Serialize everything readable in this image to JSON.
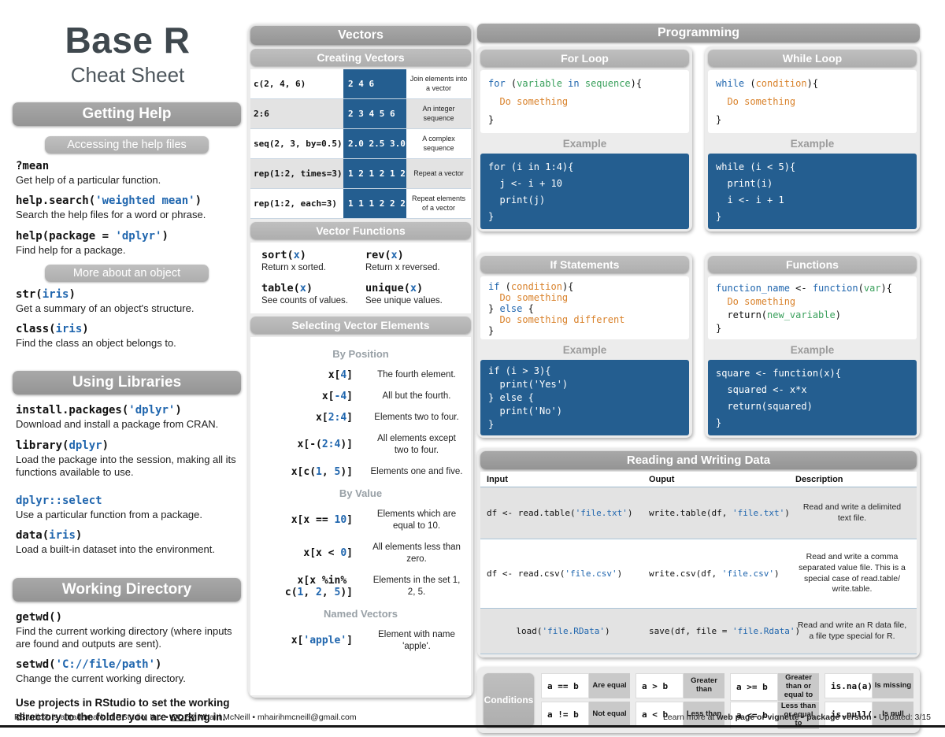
{
  "colors": {
    "header_bar": "#9c9c9c",
    "subheader_bar": "#b5b5b5",
    "panel_bg": "#ececec",
    "code_blue": "#2066ae",
    "code_orange": "#d9822b",
    "code_green": "#3aa05c",
    "example_box_blue": "#245e90"
  },
  "header": {
    "title": "Base R",
    "subtitle": "Cheat Sheet"
  },
  "left": {
    "getting_help": {
      "title": "Getting Help",
      "sub_access": "Accessing the help files",
      "sub_more": "More about an object",
      "access_items": [
        {
          "code": [
            [
              [
                "b",
                "?mean"
              ]
            ]
          ],
          "desc": "Get help of a particular function."
        },
        {
          "code": [
            [
              [
                "b",
                "help.search("
              ],
              [
                "s",
                "'weighted mean'"
              ],
              [
                "b",
                ")"
              ]
            ]
          ],
          "desc": "Search the help files for a word or phrase."
        },
        {
          "code": [
            [
              [
                "b",
                "help(package = "
              ],
              [
                "s",
                "'dplyr'"
              ],
              [
                "b",
                ")"
              ]
            ]
          ],
          "desc": "Find help for a package."
        }
      ],
      "more_items": [
        {
          "code": [
            [
              [
                "b",
                "str("
              ],
              [
                "s",
                "iris"
              ],
              [
                "b",
                ")"
              ]
            ]
          ],
          "desc": "Get a summary of an object's structure."
        },
        {
          "code": [
            [
              [
                "b",
                "class("
              ],
              [
                "s",
                "iris"
              ],
              [
                "b",
                ")"
              ]
            ]
          ],
          "desc": "Find the class an object belongs to."
        }
      ]
    },
    "using_libraries": {
      "title": "Using Libraries",
      "items": [
        {
          "code": [
            [
              [
                "b",
                "install.packages("
              ],
              [
                "s",
                "'dplyr'"
              ],
              [
                "b",
                ")"
              ]
            ]
          ],
          "desc": "Download and install a package from CRAN."
        },
        {
          "code": [
            [
              [
                "b",
                "library("
              ],
              [
                "s",
                "dplyr"
              ],
              [
                "b",
                ")"
              ]
            ]
          ],
          "desc": "Load the package into the session, making all its functions available to use."
        },
        {
          "code": [
            [
              [
                "s",
                "dplyr::select"
              ]
            ]
          ],
          "desc": "Use a particular function from a package."
        },
        {
          "code": [
            [
              [
                "b",
                "data("
              ],
              [
                "s",
                "iris"
              ],
              [
                "b",
                ")"
              ]
            ]
          ],
          "desc": "Load a built-in dataset into the environment."
        }
      ]
    },
    "working_directory": {
      "title": "Working Directory",
      "items": [
        {
          "code": [
            [
              [
                "b",
                "getwd()"
              ]
            ]
          ],
          "desc": "Find the current working directory (where inputs are found and outputs are sent)."
        },
        {
          "code": [
            [
              [
                "b",
                "setwd("
              ],
              [
                "s",
                "'C://file/path'"
              ],
              [
                "b",
                ")"
              ]
            ]
          ],
          "desc": "Change the current working directory."
        }
      ],
      "note": "Use projects in RStudio to set the working directory to the folder you are working in."
    }
  },
  "vectors": {
    "title": "Vectors",
    "creating": {
      "title": "Creating Vectors",
      "rows": [
        {
          "code": [
            [
              [
                "b",
                "c(2, 4, 6)"
              ]
            ]
          ],
          "output": "2 4 6",
          "desc": "Join elements into a vector"
        },
        {
          "code": [
            [
              [
                "b",
                "2:6"
              ]
            ]
          ],
          "output": "2 3 4 5 6",
          "desc": "An integer sequence"
        },
        {
          "code": [
            [
              [
                "b",
                "seq(2, 3, by=0.5)"
              ]
            ]
          ],
          "output": "2.0 2.5 3.0",
          "desc": "A complex sequence"
        },
        {
          "code": [
            [
              [
                "b",
                "rep(1:2, times=3)"
              ]
            ]
          ],
          "output": "1 2 1 2 1 2",
          "desc": "Repeat a vector"
        },
        {
          "code": [
            [
              [
                "b",
                "rep(1:2, each=3)"
              ]
            ]
          ],
          "output": "1 1 1 2 2 2",
          "desc": "Repeat elements of a vector"
        }
      ]
    },
    "functions": {
      "title": "Vector Functions",
      "items": [
        {
          "code": [
            [
              [
                "b",
                "sort("
              ],
              [
                "s",
                "x"
              ],
              [
                "b",
                ")"
              ]
            ]
          ],
          "desc": "Return x sorted."
        },
        {
          "code": [
            [
              [
                "b",
                "rev("
              ],
              [
                "s",
                "x"
              ],
              [
                "b",
                ")"
              ]
            ]
          ],
          "desc": "Return x reversed."
        },
        {
          "code": [
            [
              [
                "b",
                "table("
              ],
              [
                "s",
                "x"
              ],
              [
                "b",
                ")"
              ]
            ]
          ],
          "desc": "See counts of values."
        },
        {
          "code": [
            [
              [
                "b",
                "unique("
              ],
              [
                "s",
                "x"
              ],
              [
                "b",
                ")"
              ]
            ]
          ],
          "desc": "See unique values."
        }
      ]
    },
    "selecting": {
      "title": "Selecting Vector Elements",
      "by_position_label": "By Position",
      "by_value_label": "By Value",
      "named_label": "Named Vectors",
      "position": [
        {
          "code": [
            [
              [
                "b",
                "x["
              ],
              [
                "s",
                "4"
              ],
              [
                "b",
                "]"
              ]
            ]
          ],
          "desc": "The fourth element."
        },
        {
          "code": [
            [
              [
                "b",
                "x["
              ],
              [
                "s",
                "-4"
              ],
              [
                "b",
                "]"
              ]
            ]
          ],
          "desc": "All but the fourth."
        },
        {
          "code": [
            [
              [
                "b",
                "x["
              ],
              [
                "s",
                "2:4"
              ],
              [
                "b",
                "]"
              ]
            ]
          ],
          "desc": "Elements two to four."
        },
        {
          "code": [
            [
              [
                "b",
                "x[-("
              ],
              [
                "s",
                "2:4"
              ],
              [
                "b",
                ")]"
              ]
            ]
          ],
          "desc": "All elements except two to four."
        },
        {
          "code": [
            [
              [
                "b",
                "x[c("
              ],
              [
                "s",
                "1"
              ],
              [
                "b",
                ", "
              ],
              [
                "s",
                "5"
              ],
              [
                "b",
                ")]"
              ]
            ]
          ],
          "desc": "Elements one and five."
        }
      ],
      "value": [
        {
          "code": [
            [
              [
                "b",
                "x[x == "
              ],
              [
                "s",
                "10"
              ],
              [
                "b",
                "]"
              ]
            ]
          ],
          "desc": "Elements which are equal to 10."
        },
        {
          "code": [
            [
              [
                "b",
                "x[x < "
              ],
              [
                "s",
                "0"
              ],
              [
                "b",
                "]"
              ]
            ]
          ],
          "desc": "All elements less than zero."
        },
        {
          "code": [
            [
              [
                "b",
                "x[x %in% "
              ]
            ],
            [
              [
                "b",
                "c("
              ],
              [
                "s",
                "1"
              ],
              [
                "b",
                ", "
              ],
              [
                "s",
                "2"
              ],
              [
                "b",
                ", "
              ],
              [
                "s",
                "5"
              ],
              [
                "b",
                ")]"
              ]
            ]
          ],
          "desc": "Elements in the set 1, 2, 5."
        }
      ],
      "named": [
        {
          "code": [
            [
              [
                "b",
                "x["
              ],
              [
                "s",
                "'apple'"
              ],
              [
                "b",
                "]"
              ]
            ]
          ],
          "desc": "Element with name 'apple'."
        }
      ]
    }
  },
  "programming": {
    "title": "Programming",
    "example_label": "Example",
    "for_loop": {
      "title": "For Loop",
      "code": [
        [
          [
            "k",
            "for"
          ],
          [
            "b",
            " ("
          ],
          [
            "g",
            "variable"
          ],
          [
            "b",
            " "
          ],
          [
            "k",
            "in"
          ],
          [
            "b",
            " "
          ],
          [
            "g",
            "sequence"
          ],
          [
            "b",
            "){"
          ]
        ],
        [
          [
            "b",
            "  "
          ],
          [
            "o",
            "Do something"
          ]
        ],
        [
          [
            "b",
            "}"
          ]
        ]
      ],
      "example": [
        [
          [
            "b",
            "for (i in 1:4){"
          ]
        ],
        [
          [
            "b",
            "  j <- i + 10"
          ]
        ],
        [
          [
            "b",
            "  print(j)"
          ]
        ],
        [
          [
            "b",
            "}"
          ]
        ]
      ]
    },
    "while_loop": {
      "title": "While Loop",
      "code": [
        [
          [
            "k",
            "while"
          ],
          [
            "b",
            " ("
          ],
          [
            "o",
            "condition"
          ],
          [
            "b",
            "){"
          ]
        ],
        [
          [
            "b",
            "  "
          ],
          [
            "o",
            "Do something"
          ]
        ],
        [
          [
            "b",
            "}"
          ]
        ]
      ],
      "example": [
        [
          [
            "b",
            "while (i < 5){"
          ]
        ],
        [
          [
            "b",
            "  print(i)"
          ]
        ],
        [
          [
            "b",
            "  i <- i + 1"
          ]
        ],
        [
          [
            "b",
            "}"
          ]
        ]
      ]
    },
    "if_statements": {
      "title": "If Statements",
      "code": [
        [
          [
            "k",
            "if"
          ],
          [
            "b",
            " ("
          ],
          [
            "o",
            "condition"
          ],
          [
            "b",
            "){"
          ]
        ],
        [
          [
            "b",
            "  "
          ],
          [
            "o",
            "Do something"
          ]
        ],
        [
          [
            "b",
            "} "
          ],
          [
            "k",
            "else"
          ],
          [
            "b",
            " {"
          ]
        ],
        [
          [
            "b",
            "  "
          ],
          [
            "o",
            "Do something different"
          ]
        ],
        [
          [
            "b",
            "}"
          ]
        ]
      ],
      "example": [
        [
          [
            "b",
            "if (i > 3){"
          ]
        ],
        [
          [
            "b",
            "  print('Yes')"
          ]
        ],
        [
          [
            "b",
            "} else {"
          ]
        ],
        [
          [
            "b",
            "  print('No')"
          ]
        ],
        [
          [
            "b",
            "}"
          ]
        ]
      ]
    },
    "functions": {
      "title": "Functions",
      "code": [
        [
          [
            "k",
            "function_name"
          ],
          [
            "b",
            " <- "
          ],
          [
            "k",
            "function"
          ],
          [
            "b",
            "("
          ],
          [
            "g",
            "var"
          ],
          [
            "b",
            "){"
          ]
        ],
        [
          [
            "b",
            "  "
          ],
          [
            "o",
            "Do something"
          ]
        ],
        [
          [
            "b",
            "  return("
          ],
          [
            "g",
            "new_variable"
          ],
          [
            "b",
            ")"
          ]
        ],
        [
          [
            "b",
            "}"
          ]
        ]
      ],
      "example": [
        [
          [
            "b",
            "square <- function(x){"
          ]
        ],
        [
          [
            "b",
            "  squared <- x*x"
          ]
        ],
        [
          [
            "b",
            "  return(squared)"
          ]
        ],
        [
          [
            "b",
            "}"
          ]
        ]
      ]
    }
  },
  "rw": {
    "title": "Reading and Writing Data",
    "headers": [
      "Input",
      "Ouput",
      "Description"
    ],
    "rows": [
      {
        "input": [
          [
            [
              "b",
              "df <- read.table("
            ],
            [
              "s",
              "'file.txt'"
            ],
            [
              "b",
              ")"
            ]
          ]
        ],
        "output": [
          [
            [
              "b",
              "write.table(df, "
            ],
            [
              "s",
              "'file.txt'"
            ],
            [
              "b",
              ")"
            ]
          ]
        ],
        "desc": "Read and write a delimited text file."
      },
      {
        "input": [
          [
            [
              "b",
              "df <- read.csv("
            ],
            [
              "s",
              "'file.csv'"
            ],
            [
              "b",
              ")"
            ]
          ]
        ],
        "output": [
          [
            [
              "b",
              "write.csv(df, "
            ],
            [
              "s",
              "'file.csv'"
            ],
            [
              "b",
              ")"
            ]
          ]
        ],
        "desc": "Read and write a comma separated value file. This is a special case of read.table/ write.table."
      },
      {
        "input": [
          [
            [
              "b",
              "load("
            ],
            [
              "s",
              "'file.RData'"
            ],
            [
              "b",
              ")"
            ]
          ]
        ],
        "output": [
          [
            [
              "b",
              "save(df, file = "
            ],
            [
              "s",
              "'file.Rdata'"
            ],
            [
              "b",
              ")"
            ]
          ]
        ],
        "desc": "Read and write an R data file, a file type special for R."
      }
    ]
  },
  "conditions": {
    "label": "Conditions",
    "items": [
      {
        "code": "a == b",
        "desc": "Are equal"
      },
      {
        "code": "a > b",
        "desc": "Greater than"
      },
      {
        "code": "a >= b",
        "desc": "Greater than or equal to"
      },
      {
        "code": "is.na(a)",
        "desc": "Is missing"
      },
      {
        "code": "a != b",
        "desc": "Not equal"
      },
      {
        "code": "a < b",
        "desc": "Less than"
      },
      {
        "code": "a <= b",
        "desc": "Less than or equal to"
      },
      {
        "code": "is.null(a)",
        "desc": "Is null"
      }
    ]
  },
  "footer": {
    "left_pre": "RStudio® is a trademark of RStudio, Inc.  •  ",
    "left_cc": "CC BY",
    "left_mid": " Mhairi McNeill  •  ",
    "left_email": "mhairihmcneill@gmail.com",
    "right_pre": "Learn more at ",
    "right_link1": "web page or vignette",
    "right_sep": "  •  ",
    "right_link2": "package version",
    "right_post": "  •  Updated: 3/15"
  }
}
